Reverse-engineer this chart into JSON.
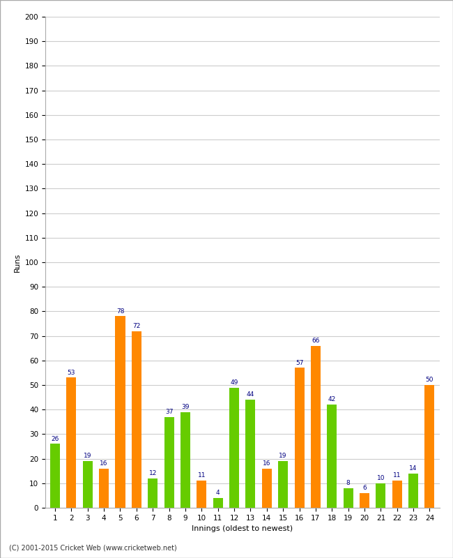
{
  "xlabel": "Innings (oldest to newest)",
  "ylabel": "Runs",
  "ylim": [
    0,
    200
  ],
  "ytick_step": 10,
  "innings": [
    1,
    2,
    3,
    4,
    5,
    6,
    7,
    8,
    9,
    10,
    11,
    12,
    13,
    14,
    15,
    16,
    17,
    18,
    19,
    20,
    21,
    22,
    23,
    24
  ],
  "values": [
    26,
    53,
    19,
    16,
    78,
    72,
    12,
    37,
    39,
    11,
    4,
    49,
    44,
    16,
    19,
    57,
    66,
    42,
    8,
    6,
    10,
    11,
    14,
    50
  ],
  "colors": [
    "#66cc00",
    "#ff8800",
    "#66cc00",
    "#ff8800",
    "#ff8800",
    "#ff8800",
    "#66cc00",
    "#66cc00",
    "#66cc00",
    "#ff8800",
    "#66cc00",
    "#66cc00",
    "#66cc00",
    "#ff8800",
    "#66cc00",
    "#ff8800",
    "#ff8800",
    "#66cc00",
    "#66cc00",
    "#ff8800",
    "#66cc00",
    "#ff8800",
    "#66cc00",
    "#ff8800"
  ],
  "label_color": "#000080",
  "label_fontsize": 6.5,
  "axis_label_fontsize": 8,
  "tick_fontsize": 7.5,
  "background_color": "#ffffff",
  "grid_color": "#cccccc",
  "footer": "(C) 2001-2015 Cricket Web (www.cricketweb.net)",
  "footer_fontsize": 7
}
